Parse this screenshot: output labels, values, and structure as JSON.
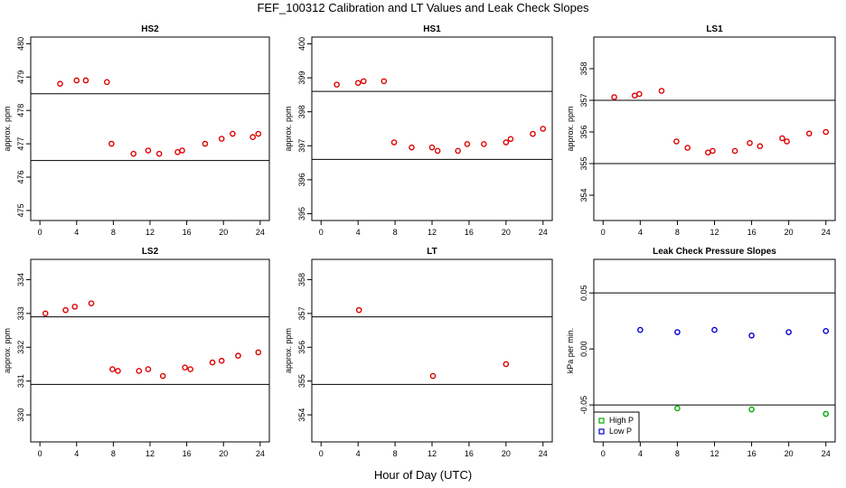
{
  "figure": {
    "title": "FEF_100312  Calibration and LT Values and Leak Check Slopes",
    "xlabel": "Hour of Day (UTC)"
  },
  "chart_data": [
    {
      "type": "scatter",
      "title": "HS2",
      "ylabel": "approx. ppm",
      "xlim": [
        -1,
        25
      ],
      "ylim": [
        474.7,
        480.2
      ],
      "xticks": [
        0,
        4,
        8,
        12,
        16,
        20,
        24
      ],
      "yticks": [
        475,
        476,
        477,
        478,
        479,
        480
      ],
      "hlines": [
        478.5,
        476.5
      ],
      "series": [
        {
          "name": "values",
          "color": "#dd0000",
          "x": [
            2.2,
            4.0,
            5.0,
            7.3,
            7.8,
            10.2,
            11.8,
            13.0,
            15.0,
            15.5,
            18.0,
            19.8,
            21.0,
            23.2,
            23.8
          ],
          "y": [
            478.8,
            478.9,
            478.9,
            478.85,
            477.0,
            476.7,
            476.8,
            476.7,
            476.75,
            476.8,
            477.0,
            477.15,
            477.3,
            477.2,
            477.3
          ]
        }
      ]
    },
    {
      "type": "scatter",
      "title": "HS1",
      "ylabel": "approx. ppm",
      "xlim": [
        -1,
        25
      ],
      "ylim": [
        394.8,
        400.2
      ],
      "xticks": [
        0,
        4,
        8,
        12,
        16,
        20,
        24
      ],
      "yticks": [
        395,
        396,
        397,
        398,
        399,
        400
      ],
      "hlines": [
        398.6,
        396.6
      ],
      "series": [
        {
          "name": "values",
          "color": "#dd0000",
          "x": [
            1.7,
            4.0,
            4.6,
            6.8,
            7.9,
            9.8,
            12.0,
            12.6,
            14.8,
            15.8,
            17.6,
            20.0,
            20.5,
            22.9,
            24.0
          ],
          "y": [
            398.8,
            398.85,
            398.9,
            398.9,
            397.1,
            396.95,
            396.95,
            396.85,
            396.85,
            397.05,
            397.05,
            397.1,
            397.2,
            397.35,
            397.5
          ]
        }
      ]
    },
    {
      "type": "scatter",
      "title": "LS1",
      "ylabel": "approx. ppm",
      "xlim": [
        -1,
        25
      ],
      "ylim": [
        353.2,
        359.0
      ],
      "xticks": [
        0,
        4,
        8,
        12,
        16,
        20,
        24
      ],
      "yticks": [
        354,
        355,
        356,
        357,
        358
      ],
      "hlines": [
        357.0,
        355.0
      ],
      "series": [
        {
          "name": "values",
          "color": "#dd0000",
          "x": [
            1.2,
            3.4,
            3.9,
            6.3,
            7.9,
            9.1,
            11.3,
            11.8,
            14.2,
            15.8,
            16.9,
            19.3,
            19.8,
            22.2,
            24.0
          ],
          "y": [
            357.1,
            357.15,
            357.2,
            357.3,
            355.7,
            355.5,
            355.35,
            355.4,
            355.4,
            355.65,
            355.55,
            355.8,
            355.7,
            355.95,
            356.0
          ]
        }
      ]
    },
    {
      "type": "scatter",
      "title": "LS2",
      "ylabel": "approx. ppm",
      "xlim": [
        -1,
        25
      ],
      "ylim": [
        329.2,
        334.6
      ],
      "xticks": [
        0,
        4,
        8,
        12,
        16,
        20,
        24
      ],
      "yticks": [
        330,
        331,
        332,
        333,
        334
      ],
      "hlines": [
        332.9,
        330.9
      ],
      "series": [
        {
          "name": "values",
          "color": "#dd0000",
          "x": [
            0.6,
            2.8,
            3.8,
            5.6,
            7.9,
            8.5,
            10.8,
            11.8,
            13.4,
            15.8,
            16.4,
            18.8,
            19.8,
            21.6,
            23.8
          ],
          "y": [
            333.0,
            333.1,
            333.2,
            333.3,
            331.35,
            331.3,
            331.3,
            331.35,
            331.15,
            331.4,
            331.35,
            331.55,
            331.6,
            331.75,
            331.85
          ]
        }
      ]
    },
    {
      "type": "scatter",
      "title": "LT",
      "ylabel": "approx. ppm",
      "xlim": [
        -1,
        25
      ],
      "ylim": [
        353.2,
        358.6
      ],
      "xticks": [
        0,
        4,
        8,
        12,
        16,
        20,
        24
      ],
      "yticks": [
        354,
        355,
        356,
        357,
        358
      ],
      "hlines": [
        356.9,
        354.9
      ],
      "series": [
        {
          "name": "values",
          "color": "#dd0000",
          "x": [
            4.1,
            12.1,
            20.0
          ],
          "y": [
            357.1,
            355.15,
            355.5
          ]
        }
      ]
    },
    {
      "type": "scatter",
      "title": "Leak Check Pressure Slopes",
      "ylabel": "kPa per min.",
      "xlim": [
        -1,
        25
      ],
      "ylim": [
        -0.083,
        0.08
      ],
      "xticks": [
        0,
        4,
        8,
        12,
        16,
        20,
        24
      ],
      "yticks": [
        -0.05,
        0.0,
        0.05
      ],
      "ytick_labels": [
        "-0.05",
        "0.00",
        "0.05"
      ],
      "hlines": [
        0.05,
        -0.05
      ],
      "series": [
        {
          "name": "High P",
          "color": "#00aa00",
          "x": [
            8,
            16,
            24
          ],
          "y": [
            -0.053,
            -0.054,
            -0.058
          ]
        },
        {
          "name": "Low P",
          "color": "#0000cc",
          "x": [
            4,
            8,
            12,
            16,
            20,
            24
          ],
          "y": [
            0.017,
            0.015,
            0.017,
            0.012,
            0.015,
            0.016
          ]
        }
      ],
      "legend": "bottom-left"
    }
  ]
}
